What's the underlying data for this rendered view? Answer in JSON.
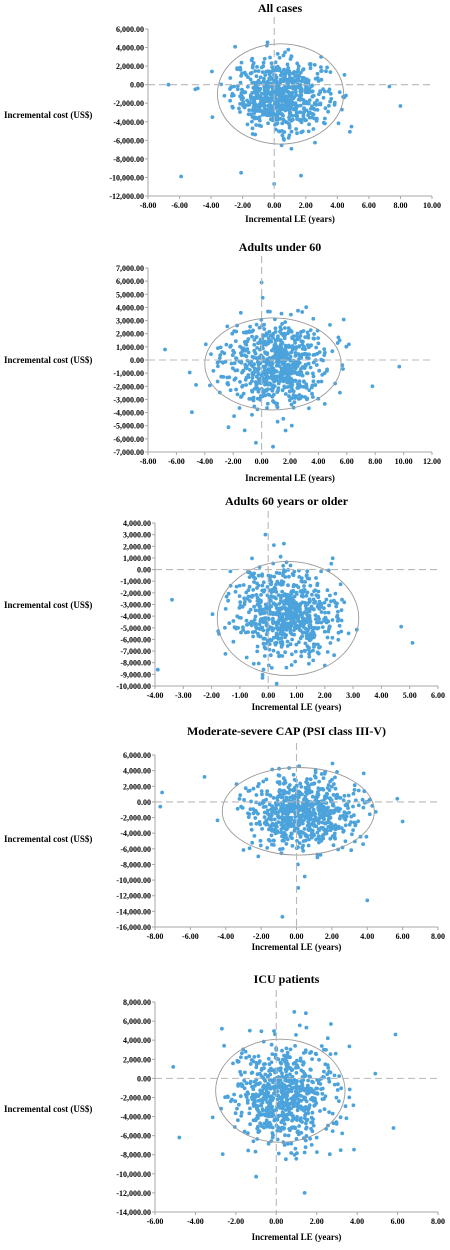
{
  "colors": {
    "points": "#4ca3dc",
    "ellipse": "#9a9a9a",
    "axis": "#a7a7a7",
    "dashed": "#b8b8b8"
  },
  "chart_data": [
    {
      "type": "scatter",
      "title": "All cases",
      "xlabel": "Incremental LE (years)",
      "ylabel": "Incremental cost (US$)",
      "xlim": [
        -8,
        10
      ],
      "ylim": [
        -12000,
        6000
      ],
      "xticks": [
        -8,
        -6,
        -4,
        -2,
        0,
        2,
        4,
        6,
        8,
        10
      ],
      "yticks": [
        6000,
        4000,
        2000,
        0,
        -2000,
        -4000,
        -6000,
        -8000,
        -10000,
        -12000
      ],
      "xtick_labels": [
        "-8.00",
        "-6.00",
        "-4.00",
        "-2.00",
        "0.00",
        "2.00",
        "4.00",
        "6.00",
        "8.00",
        "10.00"
      ],
      "ytick_labels": [
        "6,000.00",
        "4,000.00",
        "2,000.00",
        "0.00",
        "-2,000.00",
        "-4,000.00",
        "-6,000.00",
        "-8,000.00",
        "-10,000.00",
        "-12,000.00"
      ],
      "center": [
        0.4,
        -1100
      ],
      "spread": [
        1.5,
        1900
      ],
      "ellipse": {
        "cx": 0.4,
        "cy": -1000,
        "rx": 4.0,
        "ry": 5400
      },
      "n_points": 700,
      "outliers": [
        [
          -5.9,
          -9900
        ],
        [
          -2.1,
          -9500
        ],
        [
          0.0,
          -10700
        ],
        [
          1.7,
          -9800
        ],
        [
          8.0,
          -2300
        ],
        [
          7.3,
          -200
        ],
        [
          -5.0,
          -500
        ],
        [
          -6.7,
          0
        ]
      ]
    },
    {
      "type": "scatter",
      "title": "Adults under 60",
      "xlabel": "Incremental LE (years)",
      "ylabel": "Incremental cost (US$)",
      "xlim": [
        -8,
        12
      ],
      "ylim": [
        -7000,
        7000
      ],
      "xticks": [
        -8,
        -6,
        -4,
        -2,
        0,
        2,
        4,
        6,
        8,
        10,
        12
      ],
      "yticks": [
        7000,
        6000,
        5000,
        4000,
        3000,
        2000,
        1000,
        0,
        -1000,
        -2000,
        -3000,
        -4000,
        -5000,
        -6000,
        -7000
      ],
      "xtick_labels": [
        "-8.00",
        "-6.00",
        "-4.00",
        "-2.00",
        "0.00",
        "2.00",
        "4.00",
        "6.00",
        "8.00",
        "10.00",
        "12.00"
      ],
      "ytick_labels": [
        "7,000.00",
        "6,000.00",
        "5,000.00",
        "4,000.00",
        "3,000.00",
        "2,000.00",
        "1,000.00",
        "0.00",
        "-1,000.00",
        "-2,000.00",
        "-3,000.00",
        "-4,000.00",
        "-5,000.00",
        "-6,000.00",
        "-7,000.00"
      ],
      "center": [
        0.9,
        -300
      ],
      "spread": [
        1.8,
        1600
      ],
      "ellipse": {
        "cx": 0.8,
        "cy": -300,
        "rx": 4.8,
        "ry": 3500
      },
      "n_points": 700,
      "outliers": [
        [
          9.7,
          -500
        ],
        [
          7.8,
          -2000
        ],
        [
          -6.8,
          800
        ],
        [
          0.0,
          5900
        ],
        [
          -0.4,
          -6300
        ],
        [
          0.8,
          -6600
        ]
      ]
    },
    {
      "type": "scatter",
      "title": "Adults 60 years or older",
      "xlabel": "Incremental LE (years)",
      "ylabel": "Incremental cost (US$)",
      "xlim": [
        -4,
        6
      ],
      "ylim": [
        -10000,
        4000
      ],
      "xticks": [
        -4,
        -3,
        -2,
        -1,
        0,
        1,
        2,
        3,
        4,
        5,
        6
      ],
      "yticks": [
        4000,
        3000,
        2000,
        1000,
        0,
        -1000,
        -2000,
        -3000,
        -4000,
        -5000,
        -6000,
        -7000,
        -8000,
        -9000,
        -10000
      ],
      "xtick_labels": [
        "-4.00",
        "-3.00",
        "-2.00",
        "-1.00",
        "0.00",
        "1.00",
        "2.00",
        "3.00",
        "4.00",
        "5.00",
        "6.00"
      ],
      "ytick_labels": [
        "4,000.00",
        "3,000.00",
        "2,000.00",
        "1,000.00",
        "0.00",
        "-1,000.00",
        "-2,000.00",
        "-3,000.00",
        "-4,000.00",
        "-5,000.00",
        "-6,000.00",
        "-7,000.00",
        "-8,000.00",
        "-9,000.00",
        "-10,000.00"
      ],
      "center": [
        0.6,
        -3900
      ],
      "spread": [
        0.9,
        1900
      ],
      "ellipse": {
        "cx": 0.7,
        "cy": -4200,
        "rx": 2.5,
        "ry": 4900
      },
      "n_points": 700,
      "outliers": [
        [
          -3.9,
          -8600
        ],
        [
          5.1,
          -6300
        ],
        [
          4.7,
          -4900
        ],
        [
          -0.1,
          3000
        ],
        [
          0.2,
          2100
        ],
        [
          -3.4,
          -2600
        ],
        [
          -0.2,
          -9300
        ],
        [
          0.3,
          -9800
        ]
      ]
    },
    {
      "type": "scatter",
      "title": "Moderate-severe CAP (PSI class III-V)",
      "xlabel": "Incremental LE (years)",
      "ylabel": "Incremental cost (US$)",
      "xlim": [
        -8,
        8
      ],
      "ylim": [
        -16000,
        6000
      ],
      "xticks": [
        -8,
        -6,
        -4,
        -2,
        0,
        2,
        4,
        6,
        8
      ],
      "yticks": [
        6000,
        4000,
        2000,
        0,
        -2000,
        -4000,
        -6000,
        -8000,
        -10000,
        -12000,
        -14000,
        -16000
      ],
      "xtick_labels": [
        "-8.00",
        "-6.00",
        "-4.00",
        "-2.00",
        "0.00",
        "2.00",
        "4.00",
        "6.00",
        "8.00"
      ],
      "ytick_labels": [
        "6,000.00",
        "4,000.00",
        "2,000.00",
        "0.00",
        "-2,000.00",
        "-4,000.00",
        "-6,000.00",
        "-8,000.00",
        "-10,000.00",
        "-12,000.00",
        "-14,000.00",
        "-16,000.00"
      ],
      "center": [
        0.3,
        -1500
      ],
      "spread": [
        1.5,
        2400
      ],
      "ellipse": {
        "cx": 0.1,
        "cy": -1200,
        "rx": 4.3,
        "ry": 5600
      },
      "n_points": 700,
      "outliers": [
        [
          -0.8,
          -14700
        ],
        [
          0.1,
          -11000
        ],
        [
          4.0,
          -12600
        ],
        [
          -7.6,
          1200
        ],
        [
          -7.7,
          -600
        ],
        [
          5.7,
          400
        ],
        [
          6.0,
          -2500
        ],
        [
          -5.2,
          3200
        ]
      ]
    },
    {
      "type": "scatter",
      "title": "ICU patients",
      "xlabel": "Incremental LE (years)",
      "ylabel": "Incremental cost (US$)",
      "xlim": [
        -6,
        8
      ],
      "ylim": [
        -14000,
        8000
      ],
      "xticks": [
        -6,
        -4,
        -2,
        0,
        2,
        4,
        6,
        8
      ],
      "yticks": [
        8000,
        6000,
        4000,
        2000,
        0,
        -2000,
        -4000,
        -6000,
        -8000,
        -10000,
        -12000,
        -14000
      ],
      "xtick_labels": [
        "-6.00",
        "-4.00",
        "-2.00",
        "0.00",
        "2.00",
        "4.00",
        "6.00",
        "8.00"
      ],
      "ytick_labels": [
        "8,000.00",
        "6,000.00",
        "4,000.00",
        "2,000.00",
        "0.00",
        "-2,000.00",
        "-4,000.00",
        "-6,000.00",
        "-8,000.00",
        "-10,000.00",
        "-12,000.00",
        "-14,000.00"
      ],
      "center": [
        0.3,
        -1700
      ],
      "spread": [
        1.2,
        2700
      ],
      "ellipse": {
        "cx": 0.2,
        "cy": -1300,
        "rx": 3.2,
        "ry": 5400
      },
      "n_points": 700,
      "outliers": [
        [
          -4.8,
          -6200
        ],
        [
          -5.1,
          1200
        ],
        [
          5.9,
          4600
        ],
        [
          5.8,
          -5200
        ],
        [
          2.7,
          5700
        ],
        [
          1.4,
          -12000
        ],
        [
          -1.0,
          -10300
        ],
        [
          4.9,
          500
        ]
      ]
    }
  ]
}
